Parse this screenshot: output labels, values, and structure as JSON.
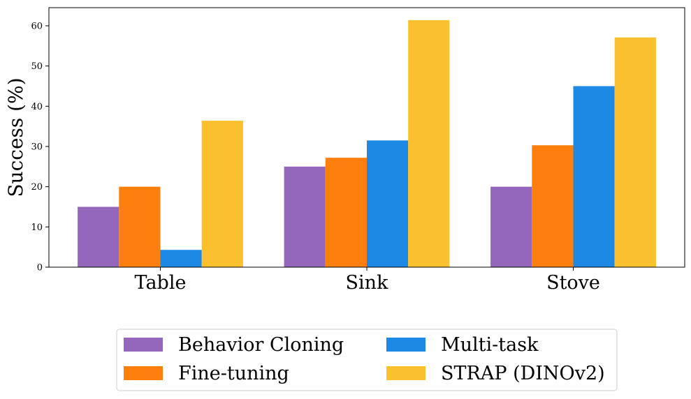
{
  "chart_data": {
    "type": "bar",
    "title": "",
    "xlabel": "",
    "ylabel": "Success (%)",
    "ylim": [
      0,
      64.5
    ],
    "yticks": [
      0,
      10,
      20,
      30,
      40,
      50,
      60
    ],
    "categories": [
      "Table",
      "Sink",
      "Stove"
    ],
    "series": [
      {
        "name": "Behavior Cloning",
        "color": "#9467bd",
        "values": [
          15.0,
          25.0,
          20.0
        ]
      },
      {
        "name": "Fine-tuning",
        "color": "#ff7f0e",
        "values": [
          20.0,
          27.2,
          30.3
        ]
      },
      {
        "name": "Multi-task",
        "color": "#1e88e5",
        "values": [
          4.3,
          31.5,
          45.0
        ]
      },
      {
        "name": "STRAP (DINOv2)",
        "color": "#fbc02d",
        "values": [
          36.4,
          61.4,
          57.1
        ]
      }
    ],
    "grid": false,
    "legend_position": "bottom-center"
  }
}
